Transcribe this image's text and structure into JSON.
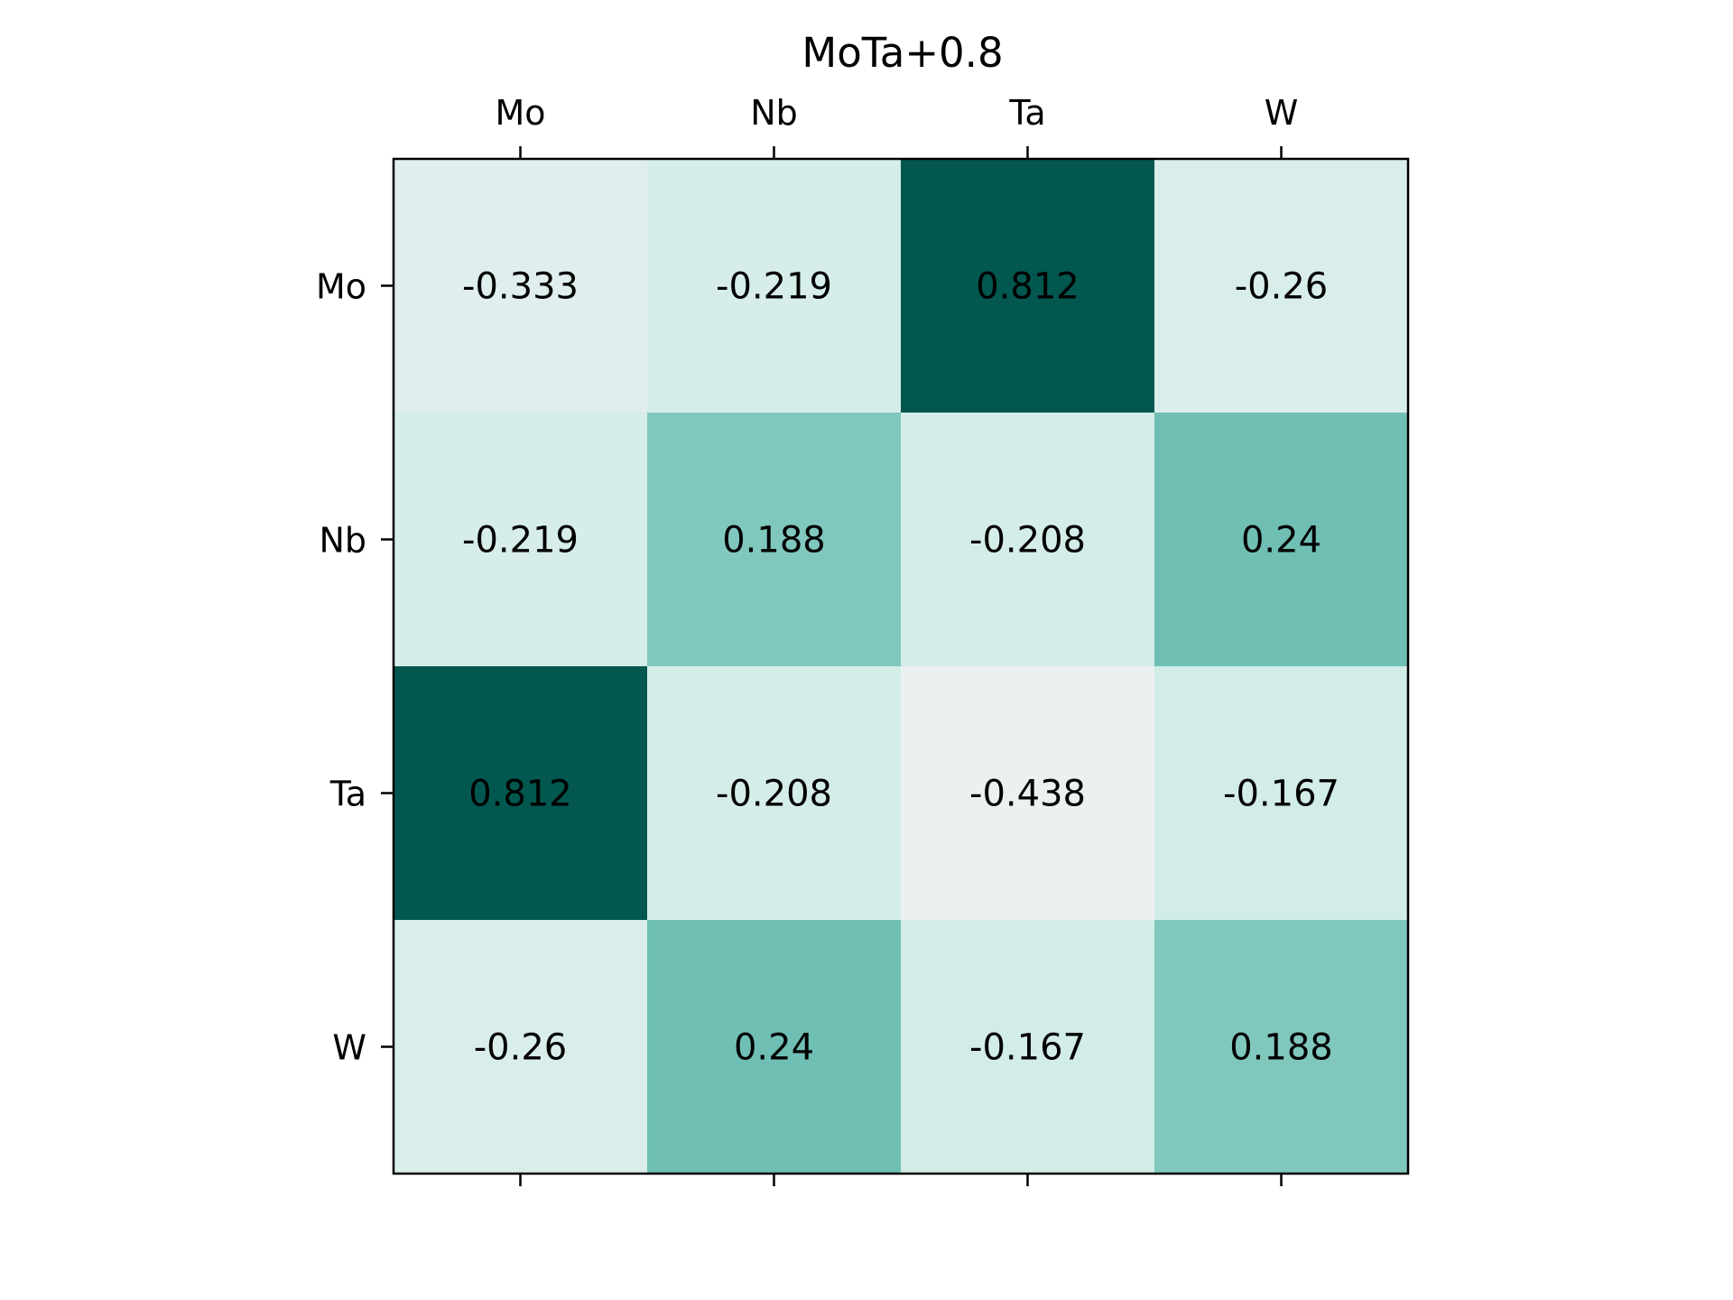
{
  "chart_data": {
    "type": "heatmap",
    "title": "MoTa+0.8",
    "x_categories": [
      "Mo",
      "Nb",
      "Ta",
      "W"
    ],
    "y_categories": [
      "Mo",
      "Nb",
      "Ta",
      "W"
    ],
    "values": [
      [
        -0.333,
        -0.219,
        0.812,
        -0.26
      ],
      [
        -0.219,
        0.188,
        -0.208,
        0.24
      ],
      [
        0.812,
        -0.208,
        -0.438,
        -0.167
      ],
      [
        -0.26,
        0.24,
        -0.167,
        0.188
      ]
    ],
    "value_labels": [
      [
        "-0.333",
        "-0.219",
        "0.812",
        "-0.26"
      ],
      [
        "-0.219",
        "0.188",
        "-0.208",
        "0.24"
      ],
      [
        "0.812",
        "-0.208",
        "-0.438",
        "-0.167"
      ],
      [
        "-0.26",
        "0.24",
        "-0.167",
        "0.188"
      ]
    ],
    "colormap": "BuGn (teal)",
    "color_low": "#ebf1f1",
    "color_high": "#02574e",
    "x_ticks_position": "top",
    "grid": false,
    "legend": "none"
  }
}
